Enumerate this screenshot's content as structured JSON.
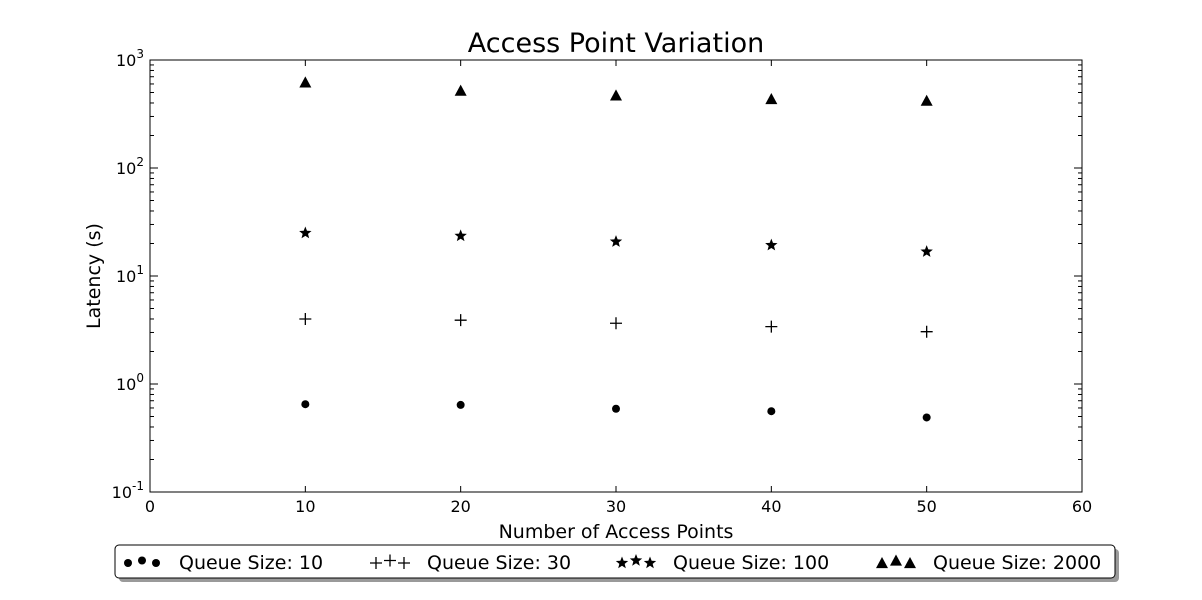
{
  "chart_data": {
    "type": "scatter",
    "title": "Access Point Variation",
    "xlabel": "Number of Access Points",
    "ylabel": "Latency (s)",
    "xlim": [
      0,
      60
    ],
    "ylim": [
      0.1,
      1000
    ],
    "yscale": "log",
    "x_ticks": [
      "0",
      "10",
      "20",
      "30",
      "40",
      "50",
      "60"
    ],
    "y_ticks": [
      {
        "base": "10",
        "exp": "-1"
      },
      {
        "base": "10",
        "exp": "0"
      },
      {
        "base": "10",
        "exp": "1"
      },
      {
        "base": "10",
        "exp": "2"
      },
      {
        "base": "10",
        "exp": "3"
      }
    ],
    "grid": false,
    "legend_position": "bottom-center",
    "x": [
      10,
      20,
      30,
      40,
      50
    ],
    "series": [
      {
        "name": "Queue Size: 10",
        "marker": "circle",
        "values": [
          0.65,
          0.64,
          0.59,
          0.56,
          0.49
        ]
      },
      {
        "name": "Queue Size: 30",
        "marker": "plus",
        "values": [
          4.0,
          3.9,
          3.65,
          3.4,
          3.05
        ]
      },
      {
        "name": "Queue Size: 100",
        "marker": "star",
        "values": [
          25,
          23.5,
          20.8,
          19.3,
          16.8
        ]
      },
      {
        "name": "Queue Size: 2000",
        "marker": "triangle",
        "values": [
          620,
          520,
          470,
          435,
          420
        ]
      }
    ]
  }
}
